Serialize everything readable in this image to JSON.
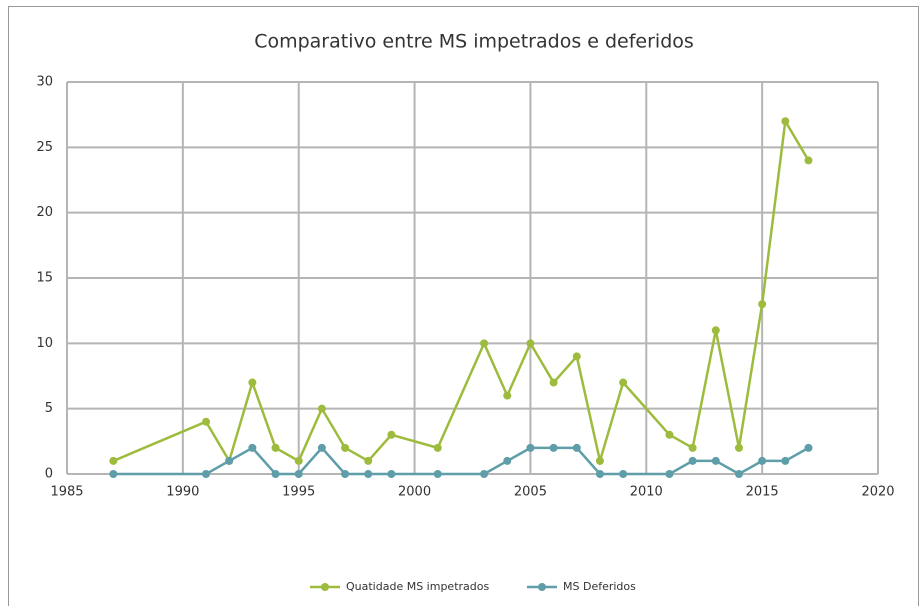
{
  "chart_data": {
    "type": "line",
    "title": "Comparativo entre MS impetrados e deferidos",
    "x": [
      1987,
      1991,
      1992,
      1993,
      1994,
      1995,
      1996,
      1997,
      1998,
      1999,
      2001,
      2003,
      2004,
      2005,
      2006,
      2007,
      2008,
      2009,
      2011,
      2012,
      2013,
      2014,
      2015,
      2016,
      2017
    ],
    "series": [
      {
        "name": "Quatidade MS impetrados",
        "color": "#9dbb3c",
        "values": [
          1,
          4,
          1,
          7,
          2,
          1,
          5,
          2,
          1,
          3,
          2,
          10,
          6,
          10,
          7,
          9,
          1,
          7,
          3,
          2,
          11,
          2,
          13,
          27,
          24
        ]
      },
      {
        "name": "MS Deferidos",
        "color": "#5f9ea8",
        "values": [
          0,
          0,
          1,
          2,
          0,
          0,
          2,
          0,
          0,
          0,
          0,
          0,
          1,
          2,
          2,
          2,
          0,
          0,
          0,
          1,
          1,
          0,
          1,
          1,
          2
        ]
      }
    ],
    "xlim": [
      1985,
      2020
    ],
    "xticks": [
      1985,
      1990,
      1995,
      2000,
      2005,
      2010,
      2015,
      2020
    ],
    "ylim": [
      0,
      30
    ],
    "yticks": [
      0,
      5,
      10,
      15,
      20,
      25,
      30
    ],
    "grid": true,
    "legend": "bottom"
  }
}
